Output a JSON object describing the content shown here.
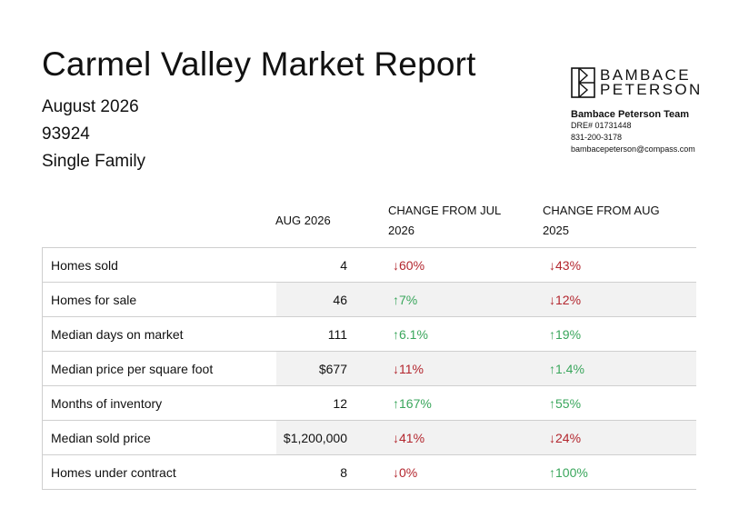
{
  "report": {
    "title": "Carmel Valley Market Report",
    "period": "August 2026",
    "zip": "93924",
    "property_type": "Single Family"
  },
  "brand": {
    "logo_line1": "BAMBACE",
    "logo_line2": "PETERSON",
    "team": "Bambace Peterson Team",
    "dre": "DRE# 01731448",
    "phone": "831-200-3178",
    "email": "bambacepeterson@compass.com"
  },
  "table": {
    "headers": {
      "current": "AUG 2026",
      "mom_line1": "CHANGE FROM JUL",
      "mom_line2": "2026",
      "yoy_line1": "CHANGE FROM AUG",
      "yoy_line2": "2025"
    },
    "rows": [
      {
        "label": "Homes sold",
        "value": "4",
        "mom": "↓60%",
        "mom_dir": "down",
        "yoy": "↓43%",
        "yoy_dir": "down"
      },
      {
        "label": "Homes for sale",
        "value": "46",
        "mom": "↑7%",
        "mom_dir": "up",
        "yoy": "↓12%",
        "yoy_dir": "down"
      },
      {
        "label": "Median days on market",
        "value": "111",
        "mom": "↑6.1%",
        "mom_dir": "up",
        "yoy": "↑19%",
        "yoy_dir": "up"
      },
      {
        "label": "Median price per square foot",
        "value": "$677",
        "mom": "↓11%",
        "mom_dir": "down",
        "yoy": "↑1.4%",
        "yoy_dir": "up"
      },
      {
        "label": "Months of inventory",
        "value": "12",
        "mom": "↑167%",
        "mom_dir": "up",
        "yoy": "↑55%",
        "yoy_dir": "up"
      },
      {
        "label": "Median sold price",
        "value": "$1,200,000",
        "mom": "↓41%",
        "mom_dir": "down",
        "yoy": "↓24%",
        "yoy_dir": "down"
      },
      {
        "label": "Homes under contract",
        "value": "8",
        "mom": "↓0%",
        "mom_dir": "down",
        "yoy": "↑100%",
        "yoy_dir": "up"
      }
    ]
  },
  "colors": {
    "down": "#b3262e",
    "up": "#3aa65c"
  }
}
